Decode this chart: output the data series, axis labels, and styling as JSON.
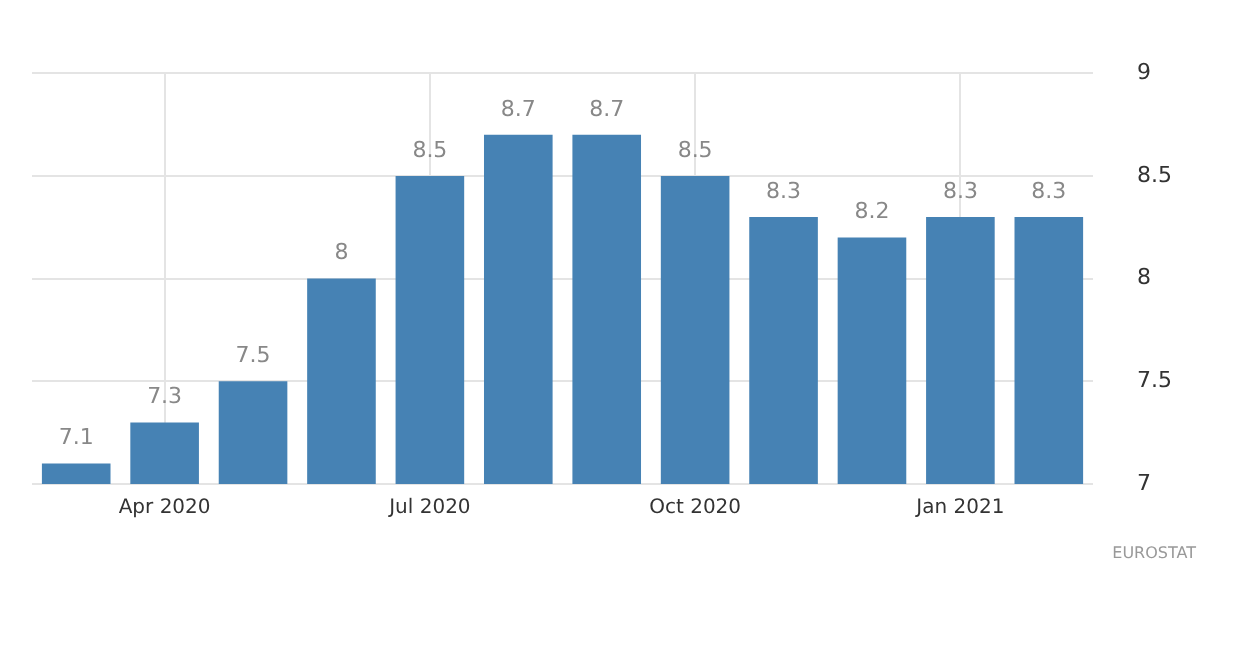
{
  "chart_data": {
    "type": "bar",
    "categories": [
      null,
      "Apr 2020",
      null,
      null,
      "Jul 2020",
      null,
      null,
      "Oct 2020",
      null,
      null,
      "Jan 2021",
      null
    ],
    "values": [
      7.1,
      7.3,
      7.5,
      8,
      8.5,
      8.7,
      8.7,
      8.5,
      8.3,
      8.2,
      8.3,
      8.3
    ],
    "color": "#4682b4",
    "ylim": [
      7,
      9
    ],
    "yticks": [
      7,
      7.5,
      8,
      8.5,
      9
    ],
    "grid": true,
    "data_labels": true,
    "annotations": [
      "EUROSTAT"
    ]
  }
}
